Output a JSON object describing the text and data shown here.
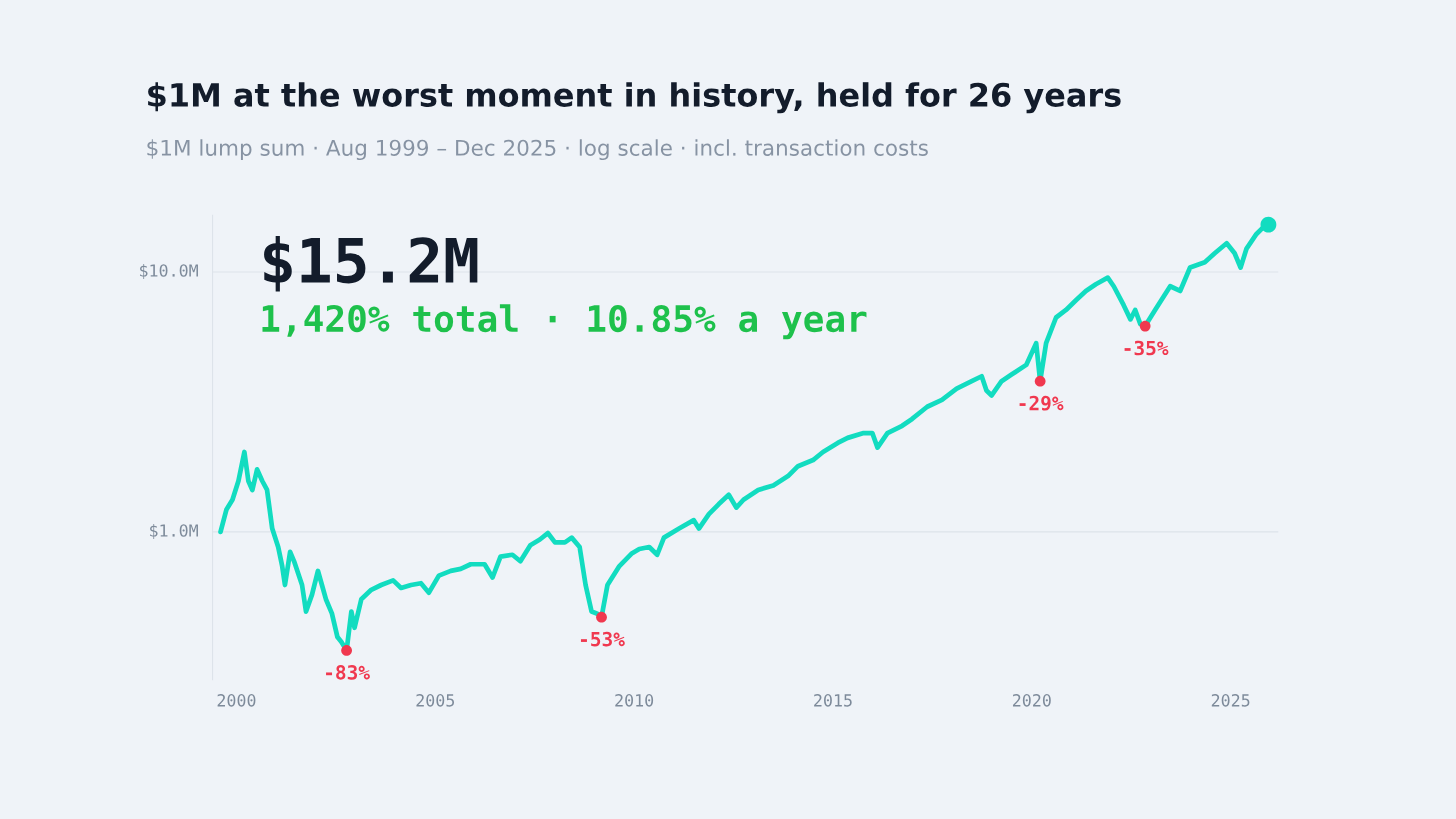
{
  "chart_data": {
    "type": "line",
    "title": "$1M at the worst moment in history, held for 26 years",
    "subtitle": "$1M lump sum · Aug 1999 – Dec 2025 · log scale · incl. transaction costs",
    "annotations": [
      "$15.2M",
      "1,420% total · 10.85% a year",
      {
        "text": "-83%",
        "x": 2002.77,
        "y": 0.35
      },
      {
        "text": "-53%",
        "x": 2009.18,
        "y": 0.47
      },
      {
        "text": "-29%",
        "x": 2020.21,
        "y": 3.8
      },
      {
        "text": "-35%",
        "x": 2022.85,
        "y": 6.19
      }
    ],
    "log": "y",
    "grid": "y",
    "legend": false,
    "marker": "none",
    "line_style": "solid",
    "xlim": [
      1999.4,
      2026.2
    ],
    "xticks": [
      2000,
      2005,
      2010,
      2015,
      2020,
      2025
    ],
    "ylim": [
      0.27,
      16.5
    ],
    "yticks": [
      {
        "value": 1,
        "label": "$1.0M"
      },
      {
        "value": 10,
        "label": "$10.0M"
      }
    ],
    "series": [
      {
        "color": "#12dcc0",
        "x": [
          1999.6,
          1999.75,
          1999.9,
          2000.05,
          2000.2,
          2000.3,
          2000.4,
          2000.52,
          2000.65,
          2000.77,
          2000.9,
          2001.05,
          2001.15,
          2001.22,
          2001.35,
          2001.45,
          2001.65,
          2001.75,
          2001.9,
          2002.05,
          2002.15,
          2002.25,
          2002.4,
          2002.54,
          2002.64,
          2002.77,
          2002.89,
          2002.97,
          2003.14,
          2003.39,
          2003.64,
          2003.94,
          2004.14,
          2004.39,
          2004.64,
          2004.84,
          2005.09,
          2005.39,
          2005.64,
          2005.89,
          2006.24,
          2006.44,
          2006.64,
          2006.94,
          2007.14,
          2007.39,
          2007.63,
          2007.83,
          2008.01,
          2008.26,
          2008.43,
          2008.63,
          2008.78,
          2008.93,
          2009.06,
          2009.18,
          2009.33,
          2009.63,
          2009.93,
          2010.13,
          2010.38,
          2010.58,
          2010.75,
          2011.13,
          2011.5,
          2011.63,
          2011.88,
          2012.13,
          2012.38,
          2012.57,
          2012.75,
          2013.12,
          2013.5,
          2013.87,
          2014.12,
          2014.5,
          2014.75,
          2015.12,
          2015.37,
          2015.77,
          2015.99,
          2016.12,
          2016.37,
          2016.74,
          2016.99,
          2017.37,
          2017.74,
          2018.11,
          2018.49,
          2018.74,
          2018.86,
          2018.99,
          2019.24,
          2019.49,
          2019.86,
          2020.11,
          2020.21,
          2020.36,
          2020.61,
          2020.86,
          2021.11,
          2021.36,
          2021.61,
          2021.91,
          2022.06,
          2022.31,
          2022.48,
          2022.6,
          2022.73,
          2022.85,
          2023.1,
          2023.48,
          2023.73,
          2023.98,
          2024.35,
          2024.6,
          2024.9,
          2025.1,
          2025.25,
          2025.4,
          2025.65,
          2025.85,
          2025.95
        ],
        "values": [
          1.0,
          1.22,
          1.33,
          1.57,
          2.03,
          1.57,
          1.45,
          1.74,
          1.57,
          1.45,
          1.03,
          0.875,
          0.739,
          0.625,
          0.838,
          0.771,
          0.625,
          0.494,
          0.574,
          0.708,
          0.625,
          0.551,
          0.486,
          0.394,
          0.377,
          0.35,
          0.494,
          0.428,
          0.551,
          0.599,
          0.625,
          0.651,
          0.609,
          0.625,
          0.635,
          0.584,
          0.679,
          0.708,
          0.721,
          0.751,
          0.751,
          0.668,
          0.804,
          0.817,
          0.771,
          0.889,
          0.935,
          0.99,
          0.912,
          0.912,
          0.951,
          0.875,
          0.625,
          0.494,
          0.486,
          0.47,
          0.625,
          0.739,
          0.824,
          0.86,
          0.875,
          0.817,
          0.951,
          1.03,
          1.11,
          1.03,
          1.17,
          1.28,
          1.39,
          1.24,
          1.33,
          1.45,
          1.51,
          1.64,
          1.79,
          1.89,
          2.03,
          2.2,
          2.3,
          2.4,
          2.4,
          2.11,
          2.4,
          2.56,
          2.72,
          3.03,
          3.22,
          3.56,
          3.8,
          3.97,
          3.5,
          3.35,
          3.8,
          4.03,
          4.39,
          5.32,
          3.8,
          5.32,
          6.68,
          7.14,
          7.78,
          8.45,
          8.97,
          9.51,
          8.81,
          7.45,
          6.57,
          7.14,
          6.3,
          6.19,
          7.14,
          8.81,
          8.45,
          10.4,
          10.9,
          11.8,
          12.9,
          11.8,
          10.4,
          12.3,
          14.0,
          15.0,
          15.2
        ]
      },
      {
        "type": "scatter",
        "marker": "circle",
        "color": "#12dcc0",
        "x": [
          2025.95
        ],
        "values": [
          15.2
        ]
      },
      {
        "type": "scatter",
        "marker": "circle",
        "color": "#f0384f",
        "x": [
          2002.77,
          2009.18,
          2020.21,
          2022.85
        ],
        "values": [
          0.35,
          0.47,
          3.8,
          6.19
        ]
      }
    ]
  }
}
